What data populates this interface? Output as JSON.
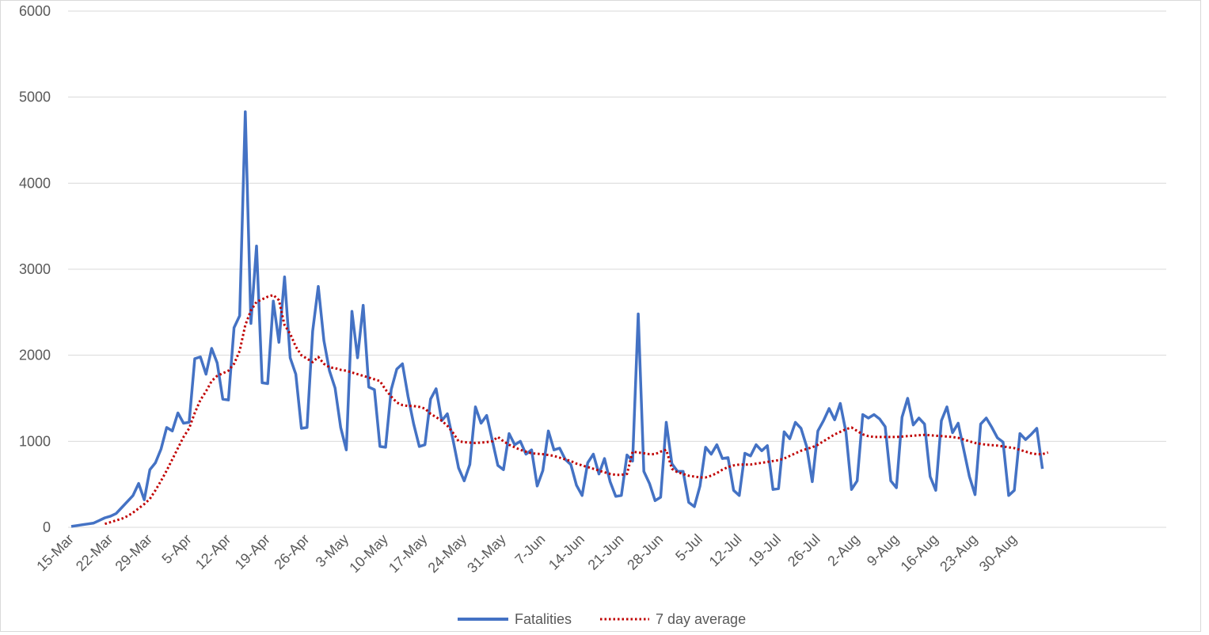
{
  "chart_data": {
    "type": "line",
    "title": "",
    "xlabel": "",
    "ylabel": "",
    "ylim": [
      0,
      6000
    ],
    "y_ticks": [
      0,
      1000,
      2000,
      3000,
      4000,
      5000,
      6000
    ],
    "grid": true,
    "legend_position": "bottom",
    "x_start": "15-Mar",
    "x_tick_labels": [
      "15-Mar",
      "22-Mar",
      "29-Mar",
      "5-Apr",
      "12-Apr",
      "19-Apr",
      "26-Apr",
      "3-May",
      "10-May",
      "17-May",
      "24-May",
      "31-May",
      "7-Jun",
      "14-Jun",
      "21-Jun",
      "28-Jun",
      "5-Jul",
      "12-Jul",
      "19-Jul",
      "26-Jul",
      "2-Aug",
      "9-Aug",
      "16-Aug",
      "23-Aug",
      "30-Aug"
    ],
    "series": [
      {
        "name": "Fatalities",
        "color": "#4472c4",
        "style": "solid",
        "start_index": 0,
        "values": [
          10,
          20,
          30,
          40,
          50,
          80,
          110,
          130,
          160,
          230,
          300,
          370,
          510,
          320,
          670,
          750,
          910,
          1160,
          1120,
          1330,
          1210,
          1220,
          1960,
          1980,
          1780,
          2080,
          1910,
          1490,
          1480,
          2320,
          2460,
          4830,
          2370,
          3270,
          1680,
          1670,
          2630,
          2150,
          2910,
          1970,
          1780,
          1150,
          1160,
          2280,
          2800,
          2170,
          1820,
          1620,
          1160,
          900,
          2510,
          1970,
          2580,
          1630,
          1600,
          940,
          930,
          1600,
          1840,
          1900,
          1520,
          1200,
          940,
          960,
          1490,
          1610,
          1240,
          1320,
          1020,
          690,
          540,
          730,
          1400,
          1210,
          1300,
          1010,
          720,
          670,
          1090,
          960,
          1000,
          850,
          900,
          480,
          660,
          1120,
          900,
          920,
          790,
          730,
          490,
          370,
          750,
          850,
          620,
          800,
          530,
          360,
          370,
          840,
          770,
          2480,
          650,
          510,
          310,
          350,
          1220,
          740,
          650,
          650,
          290,
          240,
          480,
          930,
          850,
          960,
          800,
          810,
          430,
          370,
          860,
          830,
          960,
          890,
          950,
          440,
          450,
          1110,
          1030,
          1220,
          1150,
          940,
          530,
          1120,
          1240,
          1380,
          1250,
          1440,
          1110,
          440,
          540,
          1310,
          1270,
          1310,
          1260,
          1170,
          540,
          460,
          1280,
          1500,
          1190,
          1270,
          1200,
          590,
          430,
          1240,
          1400,
          1100,
          1210,
          900,
          590,
          380,
          1200,
          1270,
          1160,
          1040,
          990,
          370,
          430,
          1090,
          1020,
          1080,
          1150,
          680
        ]
      },
      {
        "name": "7 day average",
        "color": "#c00000",
        "style": "dotted",
        "start_index": 6,
        "values": [
          40,
          60,
          80,
          100,
          130,
          170,
          220,
          270,
          330,
          430,
          540,
          660,
          790,
          920,
          1050,
          1150,
          1330,
          1480,
          1580,
          1700,
          1760,
          1790,
          1820,
          1900,
          2050,
          2350,
          2520,
          2620,
          2650,
          2680,
          2700,
          2640,
          2350,
          2250,
          2100,
          2000,
          1960,
          1920,
          1980,
          1900,
          1860,
          1850,
          1830,
          1820,
          1800,
          1780,
          1760,
          1740,
          1720,
          1700,
          1600,
          1520,
          1450,
          1420,
          1410,
          1410,
          1400,
          1380,
          1320,
          1280,
          1240,
          1180,
          1100,
          1000,
          990,
          985,
          980,
          985,
          990,
          1000,
          1050,
          1000,
          960,
          930,
          900,
          880,
          860,
          855,
          850,
          840,
          830,
          810,
          790,
          770,
          740,
          720,
          700,
          680,
          660,
          640,
          620,
          610,
          610,
          620,
          880,
          870,
          860,
          850,
          850,
          880,
          900,
          680,
          640,
          620,
          600,
          590,
          580,
          580,
          600,
          630,
          670,
          700,
          720,
          730,
          730,
          730,
          740,
          750,
          760,
          770,
          780,
          800,
          830,
          860,
          890,
          910,
          930,
          960,
          1000,
          1040,
          1080,
          1110,
          1140,
          1160,
          1120,
          1080,
          1060,
          1050,
          1050,
          1050,
          1050,
          1050,
          1055,
          1060,
          1065,
          1070,
          1075,
          1070,
          1065,
          1060,
          1055,
          1050,
          1040,
          1020,
          1000,
          980,
          970,
          960,
          955,
          950,
          940,
          930,
          920,
          900,
          880,
          860,
          850,
          850,
          870
        ]
      }
    ]
  }
}
